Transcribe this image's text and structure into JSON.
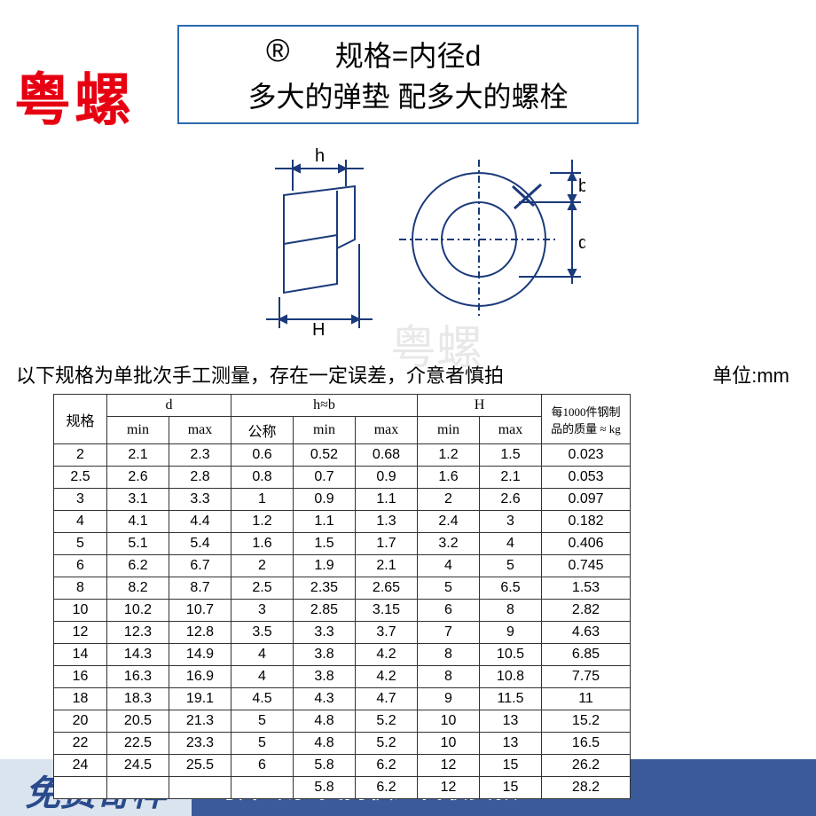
{
  "brand": "粤螺",
  "registered_mark": "®",
  "header": {
    "line1": "规格=内径d",
    "line2": "多大的弹垫 配多大的螺栓",
    "border_color": "#2a6ab0",
    "text_color": "#000000",
    "fontsize": 32
  },
  "diagram": {
    "labels": {
      "h": "h",
      "H": "H",
      "b": "b",
      "d": "d"
    },
    "stroke": "#1a3a7a",
    "stroke_width": 2
  },
  "watermark_text": "粤螺",
  "note": "以下规格为单批次手工测量，存在一定误差，介意者慎拍",
  "unit": "单位:mm",
  "table": {
    "header_row1": [
      "规格",
      "d",
      "h≈b",
      "H",
      "每1000件钢制品的质量 ≈ kg"
    ],
    "header_row2": [
      "min",
      "max",
      "公称",
      "min",
      "max",
      "min",
      "max"
    ],
    "rows": [
      [
        "2",
        "2.1",
        "2.3",
        "0.6",
        "0.52",
        "0.68",
        "1.2",
        "1.5",
        "0.023"
      ],
      [
        "2.5",
        "2.6",
        "2.8",
        "0.8",
        "0.7",
        "0.9",
        "1.6",
        "2.1",
        "0.053"
      ],
      [
        "3",
        "3.1",
        "3.3",
        "1",
        "0.9",
        "1.1",
        "2",
        "2.6",
        "0.097"
      ],
      [
        "4",
        "4.1",
        "4.4",
        "1.2",
        "1.1",
        "1.3",
        "2.4",
        "3",
        "0.182"
      ],
      [
        "5",
        "5.1",
        "5.4",
        "1.6",
        "1.5",
        "1.7",
        "3.2",
        "4",
        "0.406"
      ],
      [
        "6",
        "6.2",
        "6.7",
        "2",
        "1.9",
        "2.1",
        "4",
        "5",
        "0.745"
      ],
      [
        "8",
        "8.2",
        "8.7",
        "2.5",
        "2.35",
        "2.65",
        "5",
        "6.5",
        "1.53"
      ],
      [
        "10",
        "10.2",
        "10.7",
        "3",
        "2.85",
        "3.15",
        "6",
        "8",
        "2.82"
      ],
      [
        "12",
        "12.3",
        "12.8",
        "3.5",
        "3.3",
        "3.7",
        "7",
        "9",
        "4.63"
      ],
      [
        "14",
        "14.3",
        "14.9",
        "4",
        "3.8",
        "4.2",
        "8",
        "10.5",
        "6.85"
      ],
      [
        "16",
        "16.3",
        "16.9",
        "4",
        "3.8",
        "4.2",
        "8",
        "10.8",
        "7.75"
      ],
      [
        "18",
        "18.3",
        "19.1",
        "4.5",
        "4.3",
        "4.7",
        "9",
        "11.5",
        "11"
      ],
      [
        "20",
        "20.5",
        "21.3",
        "5",
        "4.8",
        "5.2",
        "10",
        "13",
        "15.2"
      ],
      [
        "22",
        "22.5",
        "23.3",
        "5",
        "4.8",
        "5.2",
        "10",
        "13",
        "16.5"
      ],
      [
        "24",
        "24.5",
        "25.5",
        "6",
        "5.8",
        "6.2",
        "12",
        "15",
        "26.2"
      ],
      [
        "",
        "",
        "",
        "",
        "5.8",
        "6.2",
        "12",
        "15",
        "28.2"
      ]
    ],
    "border_color": "#333333",
    "fontsize": 16
  },
  "footer": {
    "left": "免费寄样",
    "right": "可开专票 支持快递代收货款",
    "left_bg": "#d9e4ef",
    "left_color": "#2a4a8c",
    "right_bg": "#3a5a9a",
    "right_color": "#ffffff"
  }
}
